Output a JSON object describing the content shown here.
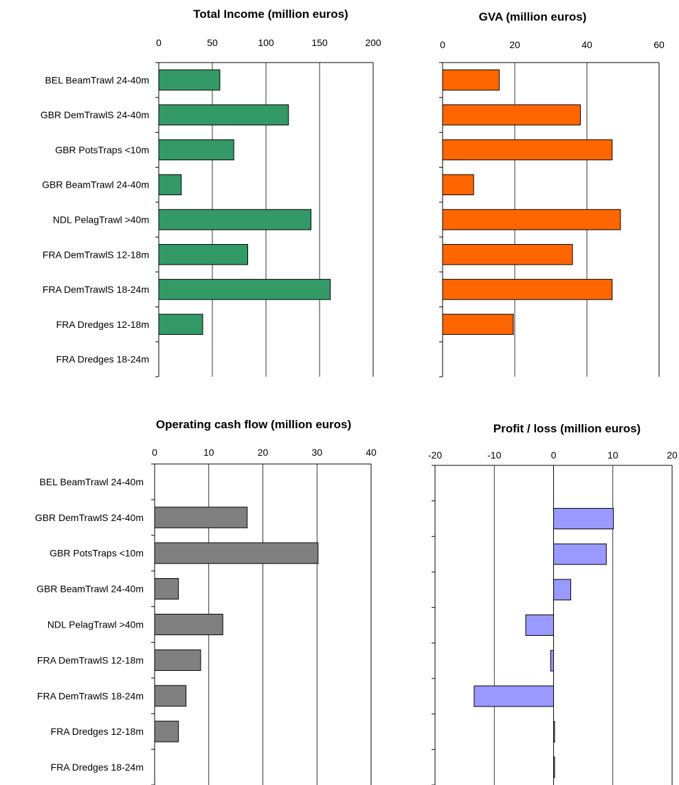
{
  "categories": [
    "BEL BeamTrawl 24-40m",
    "GBR DemTrawlS 24-40m",
    "GBR PotsTraps <10m",
    "GBR BeamTrawl 24-40m",
    "NDL PelagTrawl >40m",
    "FRA DemTrawlS 12-18m",
    "FRA DemTrawlS 18-24m",
    "FRA Dredges 12-18m",
    "FRA Dredges 18-24m"
  ],
  "chart_data": [
    {
      "type": "bar",
      "title": "Total Income (million euros)",
      "xlim": [
        0,
        200
      ],
      "ticks": [
        0,
        50,
        100,
        150,
        200
      ],
      "tick_labels": [
        "0",
        "50",
        "100",
        "150",
        "200"
      ],
      "gridlines": true,
      "color": "#339966",
      "values": [
        57,
        121,
        70,
        21,
        142,
        83,
        160,
        41,
        null
      ]
    },
    {
      "type": "bar",
      "title": "GVA (million euros)",
      "xlim": [
        0,
        60
      ],
      "ticks": [
        0,
        20,
        40,
        60
      ],
      "tick_labels": [
        "0",
        "20",
        "40",
        "60"
      ],
      "gridlines": true,
      "color": "#FF6600",
      "values": [
        15.7,
        38.2,
        47,
        8.6,
        49.3,
        36,
        47,
        19.6,
        null
      ]
    },
    {
      "type": "bar",
      "title": "Operating cash flow (million euros)",
      "xlim": [
        0,
        40
      ],
      "ticks": [
        0,
        10,
        20,
        30,
        40
      ],
      "tick_labels": [
        "0",
        "10",
        "20",
        "30",
        "40"
      ],
      "gridlines": true,
      "color": "#808080",
      "values": [
        null,
        17.1,
        30.2,
        4.4,
        12.6,
        8.5,
        5.8,
        4.4,
        null
      ]
    },
    {
      "type": "bar",
      "title": "Profit / loss (million euros)",
      "xlim": [
        -20,
        20
      ],
      "ticks": [
        -20,
        -10,
        0,
        10,
        20
      ],
      "tick_labels": [
        "-20",
        "-10",
        "0",
        "10",
        "20"
      ],
      "gridlines": true,
      "color": "#9999FF",
      "values": [
        null,
        10.1,
        8.9,
        2.9,
        -4.7,
        -0.5,
        -13.4,
        0.15,
        0.15
      ]
    }
  ]
}
